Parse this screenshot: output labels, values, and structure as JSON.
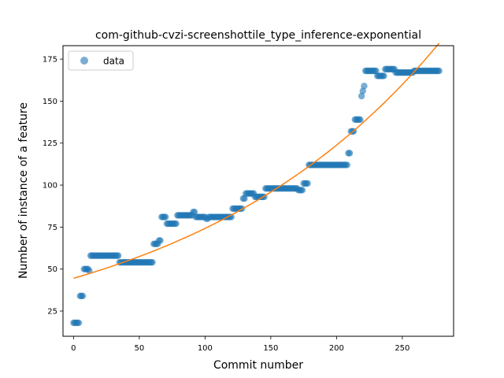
{
  "chart_data": {
    "type": "scatter",
    "title": "com-github-cvzi-screenshottile_type_inference-exponential",
    "xlabel": "Commit number",
    "ylabel": "Number of instance of a feature",
    "xlim": [
      -8,
      289
    ],
    "ylim": [
      10,
      183
    ],
    "xticks": [
      0,
      50,
      100,
      150,
      200,
      250
    ],
    "yticks": [
      25,
      50,
      75,
      100,
      125,
      150,
      175
    ],
    "grid": false,
    "legend": {
      "placement": "top-left",
      "entries": [
        "data"
      ]
    },
    "colors": {
      "data": "#1f77b4",
      "fit": "#ff7f0e"
    },
    "series": [
      {
        "name": "data",
        "kind": "points",
        "runs": [
          [
            0,
            4,
            18
          ],
          [
            5,
            7,
            34
          ],
          [
            8,
            11,
            50
          ],
          [
            12,
            12,
            49
          ],
          [
            13,
            34,
            58
          ],
          [
            35,
            60,
            54
          ],
          [
            61,
            64,
            65
          ],
          [
            65,
            66,
            67
          ],
          [
            67,
            70,
            81
          ],
          [
            71,
            78,
            77
          ],
          [
            79,
            90,
            82
          ],
          [
            91,
            92,
            84
          ],
          [
            93,
            100,
            81
          ],
          [
            101,
            102,
            80
          ],
          [
            103,
            120,
            81
          ],
          [
            121,
            128,
            86
          ],
          [
            129,
            130,
            92
          ],
          [
            131,
            137,
            95
          ],
          [
            138,
            145,
            93
          ],
          [
            146,
            170,
            98
          ],
          [
            171,
            174,
            97
          ],
          [
            175,
            178,
            101
          ],
          [
            179,
            208,
            112
          ],
          [
            209,
            210,
            119
          ],
          [
            211,
            213,
            132
          ],
          [
            214,
            218,
            139
          ],
          [
            219,
            219,
            153
          ],
          [
            220,
            220,
            156
          ],
          [
            221,
            221,
            159
          ],
          [
            222,
            230,
            168
          ],
          [
            231,
            236,
            165
          ],
          [
            237,
            244,
            169
          ],
          [
            245,
            258,
            167
          ],
          [
            259,
            278,
            168
          ]
        ]
      },
      {
        "kind": "exponential-fit",
        "x_range": [
          0,
          278
        ],
        "y_start": 44.5,
        "y_end": 184.5
      }
    ]
  }
}
